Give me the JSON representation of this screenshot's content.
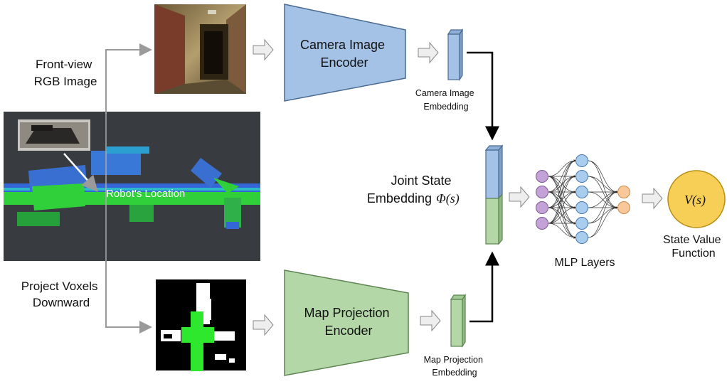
{
  "inputs": {
    "front_view_line1": "Front-view",
    "front_view_line2": "RGB Image",
    "project_line1": "Project Voxels",
    "project_line2": "Downward",
    "robot_location": "Robot's Location"
  },
  "encoders": {
    "camera_line1": "Camera Image",
    "camera_line2": "Encoder",
    "map_line1": "Map Projection",
    "map_line2": "Encoder"
  },
  "embeddings": {
    "camera_line1": "Camera Image",
    "camera_line2": "Embedding",
    "map_line1": "Map Projection",
    "map_line2": "Embedding",
    "joint_line1": "Joint State",
    "joint_line2": "Embedding",
    "joint_symbol": "Φ(s)"
  },
  "mlp": {
    "label": "MLP Layers"
  },
  "value": {
    "symbol": "V(s)",
    "label_line1": "State Value",
    "label_line2": "Function"
  },
  "colors": {
    "camera_blue": "#a4c2e6",
    "map_green": "#b4d7a8",
    "value_yellow": "#f7cf56",
    "input_purple": "#c3a3d7",
    "hidden_blue": "#a9cdee",
    "output_orange": "#f8c89a"
  }
}
